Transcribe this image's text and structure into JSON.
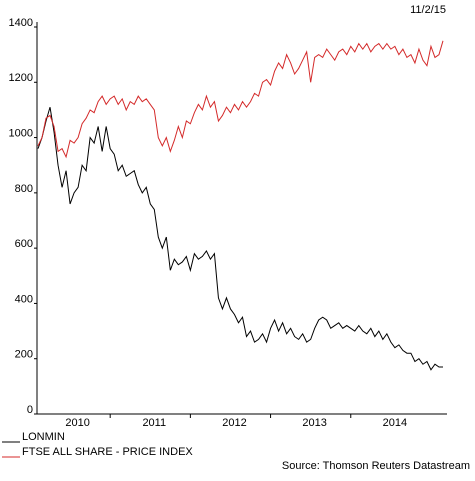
{
  "chart_data": {
    "type": "line",
    "date": "11/2/15",
    "source": "Source: Thomson Reuters Datastream",
    "x": [
      2010.1,
      2010.15,
      2010.2,
      2010.25,
      2010.3,
      2010.35,
      2010.4,
      2010.45,
      2010.5,
      2010.55,
      2010.6,
      2010.65,
      2010.7,
      2010.75,
      2010.8,
      2010.85,
      2010.9,
      2010.95,
      2011,
      2011.05,
      2011.1,
      2011.15,
      2011.2,
      2011.25,
      2011.3,
      2011.35,
      2011.4,
      2011.45,
      2011.5,
      2011.55,
      2011.6,
      2011.65,
      2011.7,
      2011.75,
      2011.8,
      2011.85,
      2011.9,
      2011.95,
      2012,
      2012.05,
      2012.1,
      2012.15,
      2012.2,
      2012.25,
      2012.3,
      2012.35,
      2012.4,
      2012.45,
      2012.5,
      2012.55,
      2012.6,
      2012.65,
      2012.7,
      2012.75,
      2012.8,
      2012.85,
      2012.9,
      2012.95,
      2013,
      2013.05,
      2013.1,
      2013.15,
      2013.2,
      2013.25,
      2013.3,
      2013.35,
      2013.4,
      2013.45,
      2013.5,
      2013.55,
      2013.6,
      2013.65,
      2013.7,
      2013.75,
      2013.8,
      2013.85,
      2013.9,
      2013.95,
      2014,
      2014.05,
      2014.1,
      2014.15,
      2014.2,
      2014.25,
      2014.3,
      2014.35,
      2014.4,
      2014.45,
      2014.5,
      2014.55,
      2014.6,
      2014.65,
      2014.7,
      2014.75,
      2014.8,
      2014.85,
      2014.9,
      2014.95,
      2015,
      2015.05,
      2015.1,
      2015.15
    ],
    "series": [
      {
        "name": "LONMIN",
        "color": "#000000",
        "values": [
          960,
          1000,
          1060,
          1110,
          1020,
          900,
          820,
          880,
          760,
          800,
          820,
          900,
          880,
          1000,
          980,
          1040,
          950,
          1040,
          960,
          940,
          880,
          900,
          860,
          870,
          880,
          830,
          800,
          820,
          760,
          740,
          640,
          600,
          640,
          520,
          560,
          540,
          550,
          570,
          520,
          580,
          560,
          570,
          590,
          560,
          580,
          420,
          380,
          420,
          380,
          360,
          330,
          350,
          280,
          300,
          260,
          270,
          290,
          260,
          310,
          340,
          300,
          330,
          290,
          310,
          280,
          270,
          290,
          260,
          270,
          310,
          340,
          350,
          340,
          310,
          320,
          330,
          310,
          320,
          310,
          300,
          320,
          300,
          290,
          310,
          280,
          300,
          270,
          290,
          260,
          240,
          250,
          230,
          220,
          220,
          190,
          200,
          180,
          190,
          160,
          180,
          170,
          170
        ]
      },
      {
        "name": "FTSE ALL SHARE - PRICE INDEX",
        "color": "#d42a2a",
        "values": [
          970,
          1000,
          1070,
          1080,
          1040,
          950,
          960,
          930,
          990,
          980,
          1000,
          1050,
          1070,
          1100,
          1090,
          1130,
          1150,
          1120,
          1140,
          1150,
          1120,
          1140,
          1100,
          1130,
          1120,
          1150,
          1130,
          1140,
          1120,
          1100,
          1000,
          970,
          1000,
          950,
          990,
          1040,
          1000,
          1060,
          1050,
          1090,
          1120,
          1100,
          1150,
          1110,
          1130,
          1060,
          1080,
          1110,
          1090,
          1120,
          1100,
          1130,
          1110,
          1130,
          1160,
          1150,
          1200,
          1210,
          1190,
          1240,
          1270,
          1250,
          1300,
          1270,
          1230,
          1250,
          1280,
          1310,
          1200,
          1290,
          1300,
          1290,
          1320,
          1300,
          1280,
          1310,
          1320,
          1300,
          1330,
          1310,
          1340,
          1320,
          1340,
          1310,
          1330,
          1340,
          1320,
          1340,
          1320,
          1330,
          1300,
          1320,
          1290,
          1300,
          1270,
          1320,
          1280,
          1260,
          1330,
          1290,
          1300,
          1350
        ]
      }
    ],
    "xlim": [
      2010.0875,
      2015.2
    ],
    "xticks": [
      {
        "value": 2010,
        "label": "2010"
      },
      {
        "value": 2011,
        "label": "2011"
      },
      {
        "value": 2012,
        "label": "2012"
      },
      {
        "value": 2013,
        "label": "2013"
      },
      {
        "value": 2014,
        "label": "2014"
      }
    ],
    "ylim": [
      0,
      1400
    ],
    "yticks": [
      0,
      200,
      400,
      600,
      800,
      1000,
      1200,
      1400
    ],
    "grid": false,
    "legend": "bottom-left"
  }
}
